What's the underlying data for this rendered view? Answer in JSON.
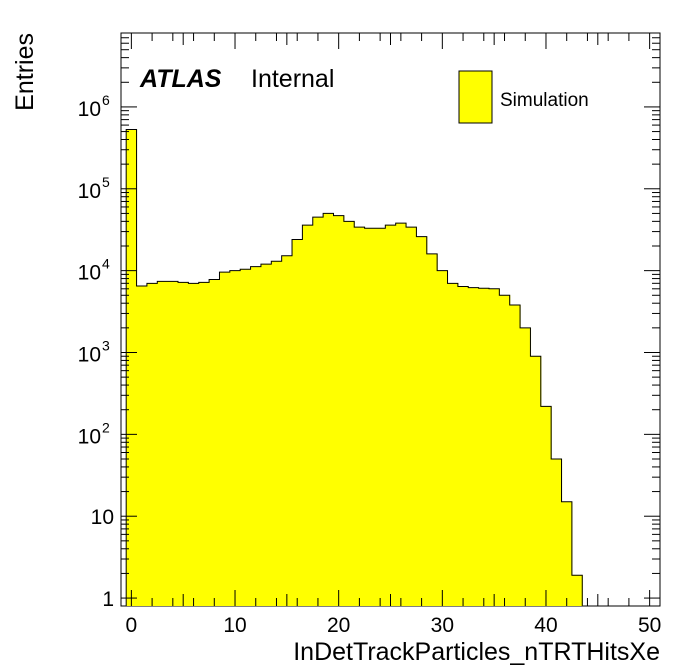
{
  "chart_data": {
    "type": "bar",
    "histogram": true,
    "log_y": true,
    "xlabel": "InDetTrackParticles_nTRTHitsXe",
    "ylabel": "Entries",
    "xlim": [
      -1,
      51
    ],
    "ylim": [
      0.8,
      8000000
    ],
    "x_ticks": [
      {
        "value": 0,
        "label": "0"
      },
      {
        "value": 10,
        "label": "10"
      },
      {
        "value": 20,
        "label": "20"
      },
      {
        "value": 30,
        "label": "30"
      },
      {
        "value": 40,
        "label": "40"
      },
      {
        "value": 50,
        "label": "50"
      }
    ],
    "y_ticks": [
      {
        "value": 1,
        "label": "1"
      },
      {
        "value": 10,
        "label": "10"
      },
      {
        "value": 100,
        "base": "10",
        "exp": "2"
      },
      {
        "value": 1000,
        "base": "10",
        "exp": "3"
      },
      {
        "value": 10000,
        "base": "10",
        "exp": "4"
      },
      {
        "value": 100000,
        "base": "10",
        "exp": "5"
      },
      {
        "value": 1000000,
        "base": "10",
        "exp": "6"
      }
    ],
    "bin_width": 1,
    "bin_edges_start": -0.5,
    "series": [
      {
        "name": "Simulation",
        "fill": "#ffff00",
        "line": "#000000",
        "values": [
          530000,
          6500,
          7000,
          7400,
          7400,
          7200,
          7000,
          7200,
          7800,
          9600,
          10000,
          10400,
          11200,
          12000,
          13000,
          15200,
          24000,
          36000,
          45000,
          50000,
          47000,
          40000,
          34000,
          33000,
          33000,
          36000,
          38000,
          34000,
          26000,
          16000,
          10000,
          7000,
          6400,
          6200,
          6100,
          6000,
          5000,
          3800,
          2000,
          900,
          220,
          50,
          15,
          1.9
        ]
      }
    ],
    "annotations": {
      "experiment": "ATLAS",
      "status": "Internal"
    },
    "legend_position": "top-right",
    "grid": false
  }
}
